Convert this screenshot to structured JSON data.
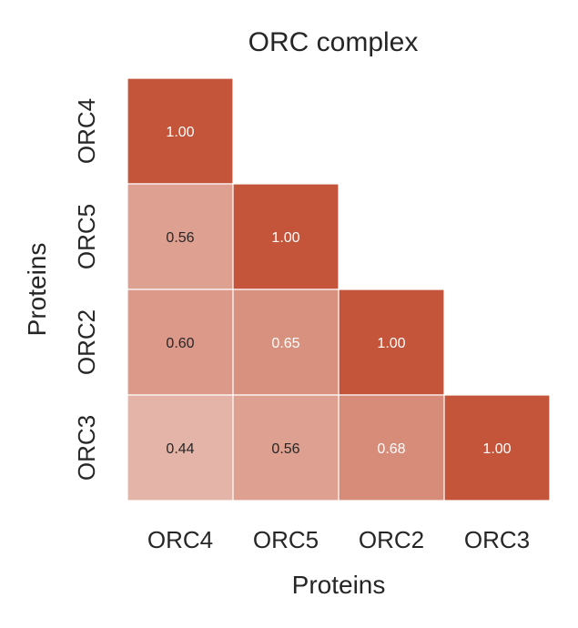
{
  "chart_data": {
    "type": "heatmap",
    "title": "ORC complex",
    "xlabel": "Proteins",
    "ylabel": "Proteins",
    "x_categories": [
      "ORC4",
      "ORC5",
      "ORC2",
      "ORC3"
    ],
    "y_categories": [
      "ORC4",
      "ORC5",
      "ORC2",
      "ORC3"
    ],
    "mask": "upper-triangle",
    "value_range": [
      0,
      1
    ],
    "colors": {
      "low": "#ffffff",
      "high": "#c4553a",
      "text_dark": "#262626",
      "text_light": "#ffffff",
      "grid": "#ffffff"
    },
    "cells": [
      {
        "row": "ORC4",
        "col": "ORC4",
        "value": 1.0,
        "label": "1.00"
      },
      {
        "row": "ORC5",
        "col": "ORC4",
        "value": 0.56,
        "label": "0.56"
      },
      {
        "row": "ORC5",
        "col": "ORC5",
        "value": 1.0,
        "label": "1.00"
      },
      {
        "row": "ORC2",
        "col": "ORC4",
        "value": 0.6,
        "label": "0.60"
      },
      {
        "row": "ORC2",
        "col": "ORC5",
        "value": 0.65,
        "label": "0.65"
      },
      {
        "row": "ORC2",
        "col": "ORC2",
        "value": 1.0,
        "label": "1.00"
      },
      {
        "row": "ORC3",
        "col": "ORC4",
        "value": 0.44,
        "label": "0.44"
      },
      {
        "row": "ORC3",
        "col": "ORC5",
        "value": 0.56,
        "label": "0.56"
      },
      {
        "row": "ORC3",
        "col": "ORC2",
        "value": 0.68,
        "label": "0.68"
      },
      {
        "row": "ORC3",
        "col": "ORC3",
        "value": 1.0,
        "label": "1.00"
      }
    ]
  }
}
